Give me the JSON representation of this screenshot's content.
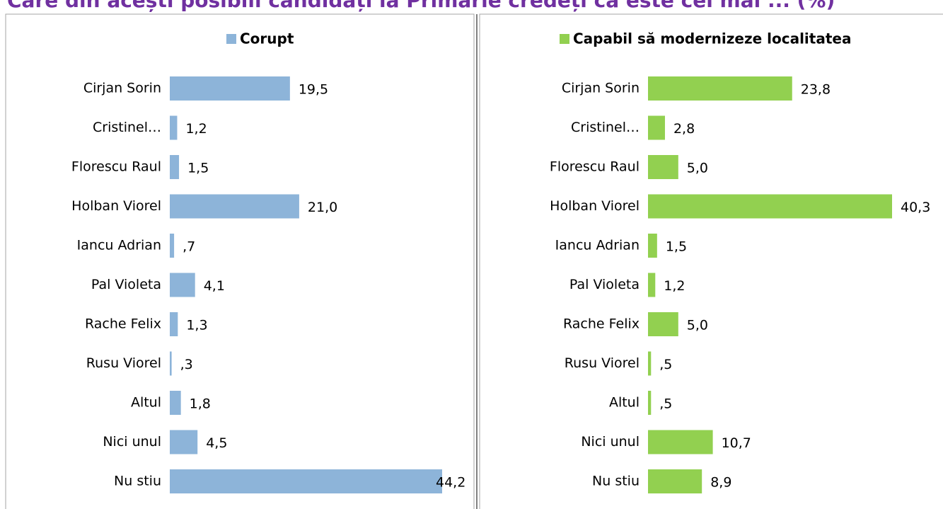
{
  "title": "Care din acești posibili candidați la Primărie credeți că este cel mai ... (%)",
  "chart_data": [
    {
      "type": "bar",
      "orientation": "horizontal",
      "categories": [
        "Cirjan Sorin",
        "Cristinel…",
        "Florescu Raul",
        "Holban Viorel",
        "Iancu Adrian",
        "Pal Violeta",
        "Rache Felix",
        "Rusu Viorel",
        "Altul",
        "Nici unul",
        "Nu stiu"
      ],
      "series": [
        {
          "name": "Corupt",
          "color": "#8db4d9",
          "values": [
            19.5,
            1.2,
            1.5,
            21.0,
            0.7,
            4.1,
            1.3,
            0.3,
            1.8,
            4.5,
            44.2
          ],
          "value_labels": [
            "19,5",
            "1,2",
            "1,5",
            "21,0",
            ",7",
            "4,1",
            "1,3",
            ",3",
            "1,8",
            "4,5",
            "44,2"
          ]
        }
      ]
    },
    {
      "type": "bar",
      "orientation": "horizontal",
      "categories": [
        "Cirjan Sorin",
        "Cristinel…",
        "Florescu Raul",
        "Holban Viorel",
        "Iancu Adrian",
        "Pal Violeta",
        "Rache Felix",
        "Rusu Viorel",
        "Altul",
        "Nici unul",
        "Nu stiu"
      ],
      "series": [
        {
          "name": "Capabil să modernizeze localitatea",
          "color": "#92d050",
          "values": [
            23.8,
            2.8,
            5.0,
            40.3,
            1.5,
            1.2,
            5.0,
            0.5,
            0.5,
            10.7,
            8.9
          ],
          "value_labels": [
            "23,8",
            "2,8",
            "5,0",
            "40,3",
            "1,5",
            "1,2",
            "5,0",
            ",5",
            ",5",
            "10,7",
            "8,9"
          ]
        }
      ]
    }
  ]
}
